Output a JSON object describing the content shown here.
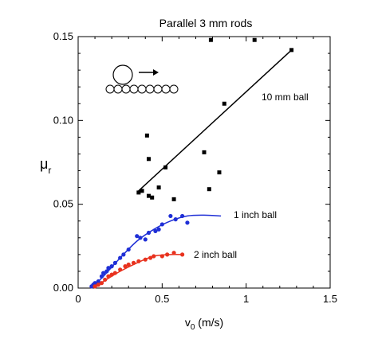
{
  "chart_data": {
    "type": "scatter",
    "title": "Parallel 3 mm rods",
    "xlabel": "v",
    "xlabel_sub": "0",
    "xlabel_unit": " (m/s)",
    "ylabel": "μ",
    "ylabel_sub": "r",
    "xlim": [
      0,
      1.5
    ],
    "ylim": [
      0,
      0.15
    ],
    "xticks": [
      0,
      0.5,
      1,
      1.5
    ],
    "xtick_labels": [
      "0",
      "0.5",
      "1",
      "1.5"
    ],
    "yticks": [
      0.0,
      0.05,
      0.1,
      0.15
    ],
    "ytick_labels": [
      "0.00",
      "0.05",
      "0.10",
      "0.15"
    ],
    "grid": false,
    "series": [
      {
        "name": "10 mm ball",
        "color": "#000000",
        "marker": "square",
        "points": [
          [
            0.36,
            0.057
          ],
          [
            0.38,
            0.058
          ],
          [
            0.41,
            0.091
          ],
          [
            0.42,
            0.077
          ],
          [
            0.42,
            0.055
          ],
          [
            0.44,
            0.054
          ],
          [
            0.48,
            0.06
          ],
          [
            0.52,
            0.072
          ],
          [
            0.57,
            0.053
          ],
          [
            0.75,
            0.081
          ],
          [
            0.78,
            0.059
          ],
          [
            0.84,
            0.069
          ],
          [
            0.87,
            0.11
          ],
          [
            0.79,
            0.148
          ],
          [
            1.05,
            0.148
          ],
          [
            1.27,
            0.142
          ]
        ],
        "fit": {
          "kind": "linear",
          "x": [
            0.36,
            1.27
          ],
          "y": [
            0.058,
            0.142
          ]
        }
      },
      {
        "name": "1 inch ball",
        "color": "#1f2fd6",
        "marker": "circle",
        "points": [
          [
            0.08,
            0.001
          ],
          [
            0.09,
            0.002
          ],
          [
            0.1,
            0.003
          ],
          [
            0.11,
            0.002
          ],
          [
            0.12,
            0.004
          ],
          [
            0.14,
            0.007
          ],
          [
            0.15,
            0.009
          ],
          [
            0.17,
            0.01
          ],
          [
            0.18,
            0.012
          ],
          [
            0.2,
            0.013
          ],
          [
            0.22,
            0.015
          ],
          [
            0.25,
            0.018
          ],
          [
            0.27,
            0.02
          ],
          [
            0.3,
            0.023
          ],
          [
            0.35,
            0.031
          ],
          [
            0.37,
            0.03
          ],
          [
            0.4,
            0.029
          ],
          [
            0.42,
            0.033
          ],
          [
            0.46,
            0.034
          ],
          [
            0.48,
            0.035
          ],
          [
            0.5,
            0.038
          ],
          [
            0.55,
            0.043
          ],
          [
            0.58,
            0.041
          ],
          [
            0.62,
            0.043
          ],
          [
            0.65,
            0.039
          ]
        ],
        "fit": {
          "kind": "curve",
          "x": [
            0.08,
            0.15,
            0.25,
            0.35,
            0.45,
            0.55,
            0.65,
            0.75,
            0.85
          ],
          "y": [
            0.0,
            0.007,
            0.018,
            0.028,
            0.035,
            0.04,
            0.043,
            0.0435,
            0.043
          ]
        }
      },
      {
        "name": "2 inch ball",
        "color": "#e8321e",
        "marker": "circle",
        "points": [
          [
            0.1,
            0.001
          ],
          [
            0.12,
            0.002
          ],
          [
            0.14,
            0.003
          ],
          [
            0.16,
            0.005
          ],
          [
            0.18,
            0.007
          ],
          [
            0.2,
            0.008
          ],
          [
            0.22,
            0.009
          ],
          [
            0.25,
            0.011
          ],
          [
            0.28,
            0.013
          ],
          [
            0.3,
            0.014
          ],
          [
            0.33,
            0.015
          ],
          [
            0.36,
            0.016
          ],
          [
            0.4,
            0.017
          ],
          [
            0.43,
            0.018
          ],
          [
            0.45,
            0.019
          ],
          [
            0.5,
            0.019
          ],
          [
            0.53,
            0.02
          ],
          [
            0.57,
            0.021
          ],
          [
            0.62,
            0.02
          ]
        ],
        "fit": {
          "kind": "curve",
          "x": [
            0.08,
            0.15,
            0.25,
            0.35,
            0.45,
            0.55,
            0.63
          ],
          "y": [
            0.0,
            0.004,
            0.01,
            0.015,
            0.019,
            0.02,
            0.02
          ]
        }
      }
    ]
  }
}
